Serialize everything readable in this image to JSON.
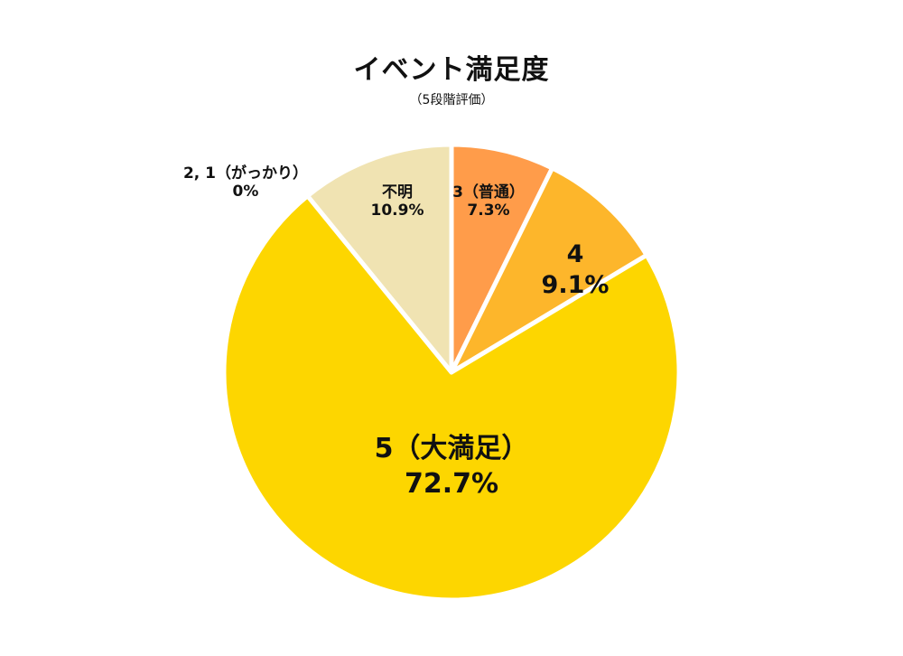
{
  "chart_data": {
    "type": "pie",
    "title": "イベント満足度",
    "subtitle": "（5段階評価）",
    "start_angle_deg": 0,
    "direction": "clockwise",
    "slices": [
      {
        "label": "3（普通）",
        "value": 7.3,
        "display": "7.3%",
        "color": "#FF9C4A"
      },
      {
        "label": "4",
        "value": 9.1,
        "display": "9.1%",
        "color": "#FDB62B"
      },
      {
        "label": "5（大満足）",
        "value": 72.7,
        "display": "72.7%",
        "color": "#FDD600"
      },
      {
        "label": "2, 1（がっかり）",
        "value": 0,
        "display": "0%",
        "color": "#FDD600"
      },
      {
        "label": "不明",
        "value": 10.9,
        "display": "10.9%",
        "color": "#F0E3B2"
      }
    ],
    "border_color": "#ffffff"
  }
}
